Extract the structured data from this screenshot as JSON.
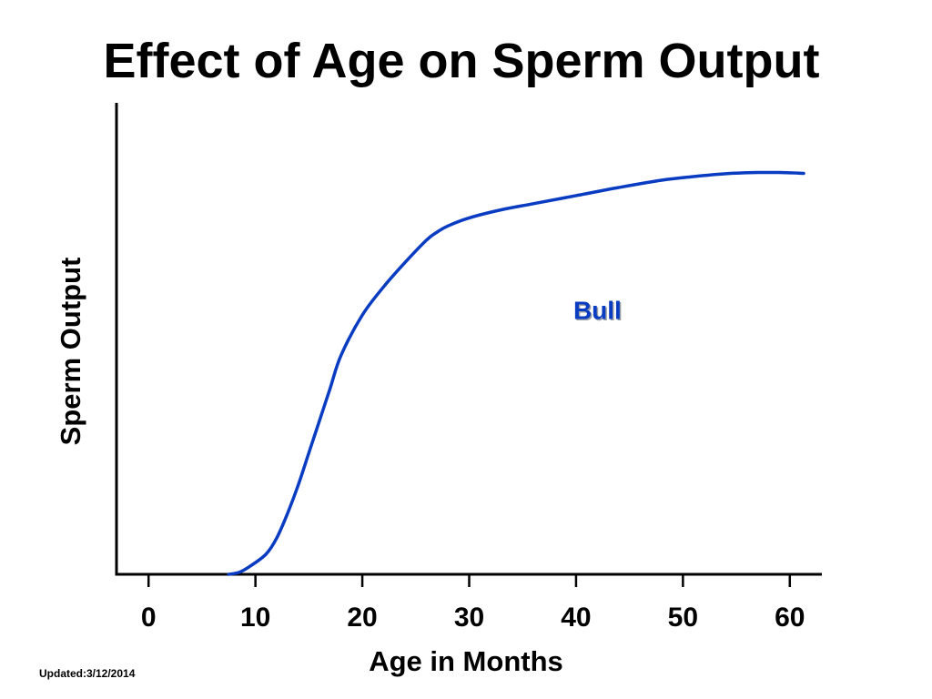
{
  "colors": {
    "background": "#ffffff",
    "axis": "#000000",
    "series_bull": "#0a3cc2",
    "text": "#000000"
  },
  "footer": {
    "updated": "Updated:3/12/2014"
  },
  "chart_data": {
    "type": "line",
    "title": "Effect of Age on Sperm Output",
    "xlabel": "Age in Months",
    "ylabel": "Sperm Output",
    "xlim": [
      -3,
      63
    ],
    "ylim": [
      0,
      100
    ],
    "xticks": [
      0,
      10,
      20,
      30,
      40,
      50,
      60
    ],
    "yticks_shown": false,
    "grid": false,
    "series": [
      {
        "name": "Bull",
        "color": "#0a3cc2",
        "x": [
          7.5,
          8.5,
          9.5,
          11,
          12,
          13,
          14,
          15,
          16,
          17,
          18,
          20,
          22,
          24,
          26,
          27,
          28,
          30,
          33,
          36,
          40,
          44,
          48,
          51,
          54,
          57,
          59,
          61.3
        ],
        "y": [
          0,
          0.5,
          2,
          5,
          9,
          15,
          22,
          30,
          38,
          46,
          54,
          64,
          71,
          77,
          82.5,
          84.5,
          86,
          88,
          90,
          91.5,
          93.5,
          95.5,
          97.3,
          98.2,
          98.9,
          99.2,
          99.2,
          99
        ]
      }
    ],
    "annotations": [
      {
        "text": "Bull",
        "x": 42,
        "y": 63,
        "color": "#0a3cc2"
      }
    ]
  }
}
